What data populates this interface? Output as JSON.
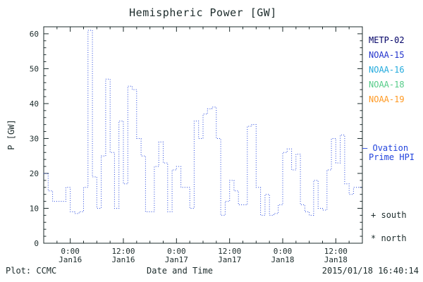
{
  "legend": {
    "satellites": [
      {
        "label": "METP-02",
        "color": "#000066"
      },
      {
        "label": "NOAA-15",
        "color": "#2233cc"
      },
      {
        "label": "NOAA-16",
        "color": "#22aadd"
      },
      {
        "label": "NOAA-18",
        "color": "#55cc88"
      },
      {
        "label": "NOAA-19",
        "color": "#ff9922"
      }
    ],
    "model": {
      "marker": "—",
      "line1": "Ovation",
      "line2": "Prime HPI",
      "color": "#2244dd"
    },
    "markers": [
      {
        "symbol": "+",
        "label": "south"
      },
      {
        "symbol": "*",
        "label": "north"
      }
    ]
  },
  "footer": {
    "left": "Plot: CCMC",
    "timestamp": "2015/01/18 16:40:14"
  },
  "chart_data": {
    "type": "line",
    "style": "dotted-steps",
    "title": "Hemispheric Power [GW]",
    "xlabel": "Date and Time",
    "ylabel": "P [GW]",
    "ylim": [
      0,
      62
    ],
    "y_ticks": [
      0,
      10,
      20,
      30,
      40,
      50,
      60
    ],
    "y_minor_step": 2,
    "x_unit": "hours from Jan16 00:00",
    "xlim_hours": [
      -6,
      66
    ],
    "x_minor_step": 3,
    "x_ticks": [
      {
        "hour": 0,
        "time": "0:00",
        "date": "Jan16"
      },
      {
        "hour": 12,
        "time": "12:00",
        "date": "Jan16"
      },
      {
        "hour": 24,
        "time": "0:00",
        "date": "Jan17"
      },
      {
        "hour": 36,
        "time": "12:00",
        "date": "Jan17"
      },
      {
        "hour": 48,
        "time": "0:00",
        "date": "Jan18"
      },
      {
        "hour": 60,
        "time": "12:00",
        "date": "Jan18"
      }
    ],
    "axis_color": "#1c2b2b",
    "legend_position": "right",
    "grid": false,
    "series": [
      {
        "name": "Ovation Prime HPI",
        "color": "#2244dd",
        "x_start_hours": -6,
        "x_step_hours": 1,
        "values": [
          20,
          15,
          12,
          12,
          12,
          16,
          9,
          8.5,
          9,
          16,
          61,
          19,
          10,
          25,
          47,
          26,
          10,
          35,
          17,
          45,
          44,
          30,
          25,
          9,
          9,
          22,
          29,
          23,
          9,
          21,
          22,
          16,
          16,
          10,
          35,
          30,
          37,
          38.5,
          39,
          30,
          8,
          12,
          18,
          15,
          11,
          11,
          33.5,
          34,
          16,
          8,
          14,
          8,
          8.5,
          11,
          26,
          27,
          21,
          25.5,
          11,
          9,
          8,
          18,
          10,
          9.5,
          21,
          30,
          23,
          31,
          17,
          14,
          16,
          16,
          16
        ]
      }
    ]
  }
}
